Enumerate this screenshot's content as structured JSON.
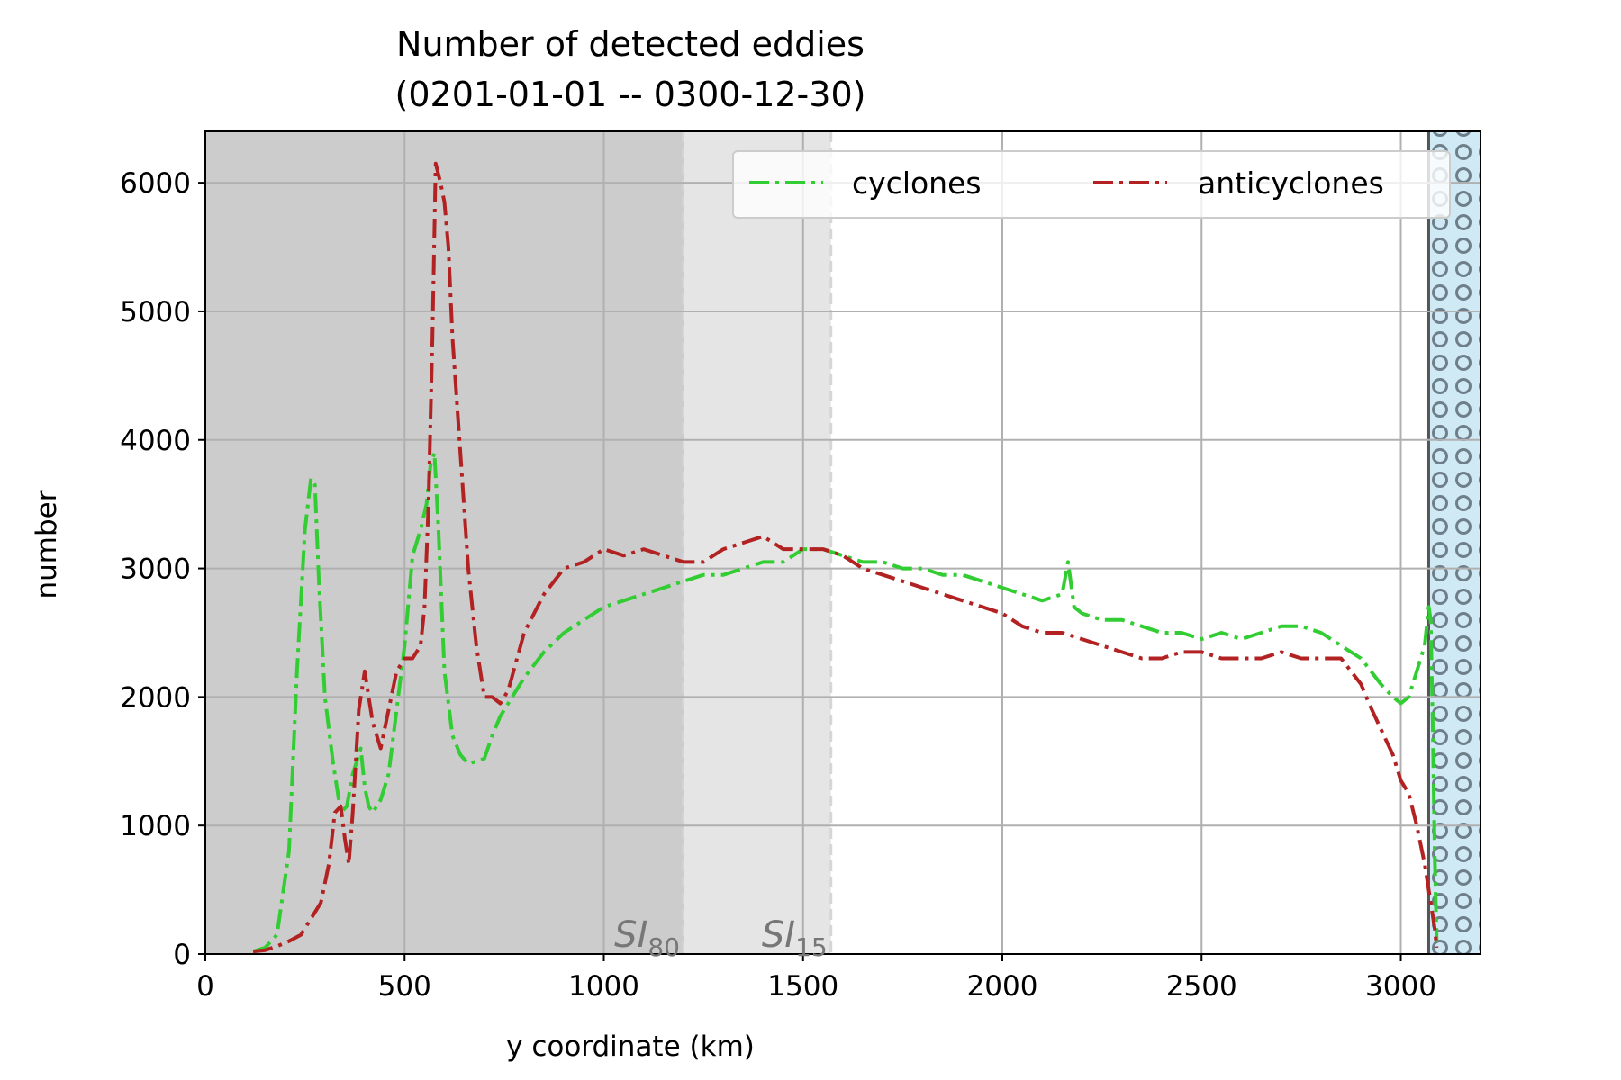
{
  "chart_data": {
    "type": "line",
    "title": "Number of detected eddies",
    "subtitle": "(0201-01-01 -- 0300-12-30)",
    "xlabel": "y coordinate (km)",
    "ylabel": "number",
    "xlim": [
      0,
      3200
    ],
    "ylim": [
      0,
      6400
    ],
    "xticks": [
      0,
      500,
      1000,
      1500,
      2000,
      2500,
      3000
    ],
    "xtick_labels": [
      "0",
      "500",
      "1000",
      "1500",
      "2000",
      "2500",
      "3000"
    ],
    "yticks": [
      0,
      1000,
      2000,
      3000,
      4000,
      5000,
      6000
    ],
    "ytick_labels": [
      "0",
      "1000",
      "2000",
      "3000",
      "4000",
      "5000",
      "6000"
    ],
    "grid": true,
    "legend_position": "top-right",
    "shaded_regions": [
      {
        "x0": 0,
        "x1": 1200,
        "color": "#cccccc",
        "label": "SI",
        "sub": "80"
      },
      {
        "x0": 1200,
        "x1": 1570,
        "color": "#e5e5e5",
        "label": "SI",
        "sub": "15"
      },
      {
        "x0": 3070,
        "x1": 3200,
        "color": "#cfe9f5",
        "label": "",
        "sub": ""
      }
    ],
    "series": [
      {
        "name": "cyclones",
        "color": "#32cd32",
        "dash": "dashdot",
        "x": [
          120,
          150,
          180,
          210,
          230,
          250,
          265,
          275,
          285,
          300,
          320,
          340,
          355,
          370,
          390,
          400,
          410,
          420,
          440,
          460,
          480,
          500,
          520,
          540,
          555,
          565,
          575,
          585,
          600,
          620,
          640,
          660,
          680,
          700,
          720,
          740,
          760,
          800,
          850,
          900,
          950,
          1000,
          1050,
          1100,
          1150,
          1200,
          1250,
          1300,
          1350,
          1400,
          1450,
          1500,
          1550,
          1600,
          1650,
          1700,
          1750,
          1800,
          1850,
          1900,
          1950,
          2000,
          2050,
          2100,
          2150,
          2165,
          2180,
          2200,
          2250,
          2300,
          2350,
          2400,
          2450,
          2500,
          2550,
          2600,
          2650,
          2700,
          2750,
          2800,
          2850,
          2900,
          2950,
          2980,
          3000,
          3020,
          3040,
          3060,
          3070,
          3075,
          3080,
          3085,
          3090
        ],
        "y": [
          20,
          50,
          150,
          800,
          2200,
          3300,
          3700,
          3650,
          2900,
          2000,
          1500,
          1100,
          1150,
          1400,
          1600,
          1300,
          1150,
          1100,
          1200,
          1400,
          1900,
          2400,
          3100,
          3300,
          3500,
          3800,
          3900,
          3300,
          2200,
          1700,
          1550,
          1480,
          1500,
          1520,
          1700,
          1850,
          1950,
          2150,
          2350,
          2500,
          2600,
          2700,
          2750,
          2800,
          2850,
          2900,
          2950,
          2950,
          3000,
          3050,
          3050,
          3150,
          3150,
          3100,
          3050,
          3050,
          3000,
          3000,
          2950,
          2950,
          2900,
          2850,
          2800,
          2750,
          2800,
          3050,
          2700,
          2650,
          2600,
          2600,
          2550,
          2500,
          2500,
          2450,
          2500,
          2450,
          2500,
          2550,
          2550,
          2500,
          2400,
          2300,
          2100,
          2000,
          1950,
          2000,
          2200,
          2400,
          2700,
          2600,
          1800,
          800,
          100
        ]
      },
      {
        "name": "anticyclones",
        "color": "#b22222",
        "dash": "dashdot",
        "x": [
          120,
          150,
          180,
          210,
          240,
          270,
          290,
          310,
          325,
          340,
          350,
          360,
          370,
          385,
          400,
          410,
          420,
          440,
          460,
          480,
          500,
          520,
          540,
          550,
          560,
          570,
          578,
          590,
          600,
          610,
          620,
          640,
          660,
          680,
          700,
          720,
          740,
          760,
          800,
          850,
          900,
          950,
          1000,
          1050,
          1100,
          1150,
          1200,
          1250,
          1300,
          1350,
          1400,
          1450,
          1500,
          1550,
          1600,
          1650,
          1700,
          1750,
          1800,
          1850,
          1900,
          1950,
          2000,
          2050,
          2100,
          2150,
          2200,
          2250,
          2300,
          2350,
          2400,
          2450,
          2500,
          2550,
          2600,
          2650,
          2700,
          2750,
          2800,
          2850,
          2900,
          2920,
          2950,
          2980,
          3000,
          3020,
          3040,
          3060,
          3075,
          3085,
          3090
        ],
        "y": [
          20,
          30,
          60,
          100,
          150,
          300,
          400,
          700,
          1100,
          1150,
          900,
          700,
          1100,
          1900,
          2200,
          2000,
          1800,
          1600,
          1900,
          2200,
          2300,
          2300,
          2400,
          2700,
          3500,
          4800,
          6150,
          6000,
          5850,
          5500,
          4800,
          3900,
          3000,
          2400,
          2000,
          2000,
          1950,
          2050,
          2500,
          2800,
          3000,
          3050,
          3150,
          3100,
          3150,
          3100,
          3050,
          3050,
          3150,
          3200,
          3250,
          3150,
          3150,
          3150,
          3100,
          3000,
          2950,
          2900,
          2850,
          2800,
          2750,
          2700,
          2650,
          2550,
          2500,
          2500,
          2450,
          2400,
          2350,
          2300,
          2300,
          2350,
          2350,
          2300,
          2300,
          2300,
          2350,
          2300,
          2300,
          2300,
          2100,
          1950,
          1750,
          1550,
          1350,
          1250,
          1000,
          700,
          400,
          200,
          50
        ]
      }
    ]
  }
}
